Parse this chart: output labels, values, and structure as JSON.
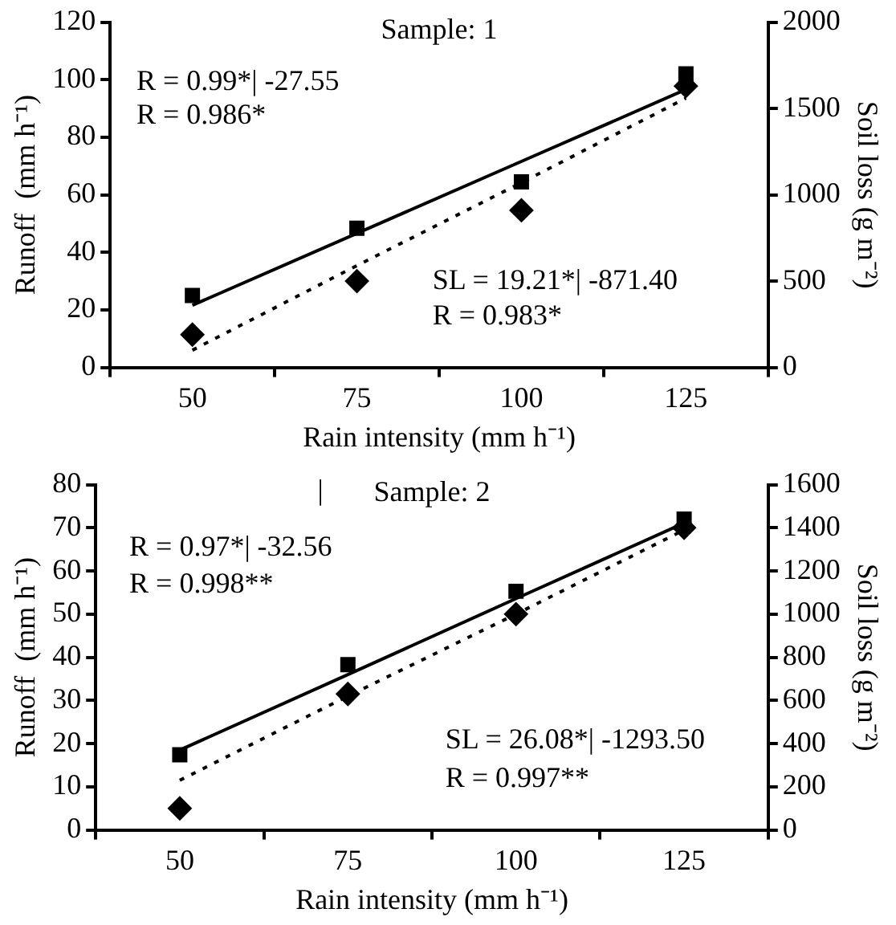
{
  "chart_data": [
    {
      "type": "scatter",
      "title": "Sample: 1",
      "xlabel": "Rain intensity (mm h⁻¹)",
      "ylabel": "Runoff  (mm h⁻¹)",
      "y2label": "Soil loss (g m⁻²)",
      "categories": [
        "50",
        "75",
        "100",
        "125"
      ],
      "series": [
        {
          "color": "#000000",
          "marker": "square",
          "values": [
            25,
            48.4,
            64.5,
            102
          ]
        },
        {
          "color": "#000000",
          "marker": "diamond",
          "axis": "y2",
          "values": [
            190,
            500,
            910,
            1630
          ]
        },
        {
          "type": "line",
          "color": "#000000",
          "marker": "none",
          "line_style": "solid",
          "values": [
            21.6,
            46.6,
            71.6,
            96.6
          ]
        },
        {
          "type": "line",
          "color": "#000000",
          "marker": "none",
          "line_style": "dotted",
          "axis": "y2",
          "values": [
            100,
            590,
            1070,
            1560
          ]
        }
      ],
      "ylim": [
        0,
        120
      ],
      "yticks": [
        0,
        20,
        40,
        60,
        80,
        100,
        120
      ],
      "y2lim": [
        0,
        2000
      ],
      "y2ticks": [
        0,
        500,
        1000,
        1500,
        2000
      ],
      "grid": false,
      "legend": false,
      "annotations": [
        "R = 0.99*| -27.55",
        "R = 0.986*",
        "SL = 19.21*| -871.40",
        "R = 0.983*"
      ]
    },
    {
      "type": "scatter",
      "title": "Sample: 2",
      "xlabel": "Rain intensity (mm h⁻¹)",
      "ylabel": "Runoff  (mm h⁻¹)",
      "y2label": "Soil loss (g m⁻²)",
      "categories": [
        "50",
        "75",
        "100",
        "125"
      ],
      "series": [
        {
          "color": "#000000",
          "marker": "square",
          "values": [
            17.4,
            38.3,
            55.3,
            72
          ]
        },
        {
          "color": "#000000",
          "marker": "diamond",
          "axis": "y2",
          "values": [
            100,
            630,
            1000,
            1400
          ]
        },
        {
          "type": "line",
          "color": "#000000",
          "marker": "none",
          "line_style": "solid",
          "values": [
            18.5,
            36,
            53.6,
            71.1
          ]
        },
        {
          "type": "line",
          "color": "#000000",
          "marker": "none",
          "line_style": "dotted",
          "axis": "y2",
          "values": [
            230,
            620,
            1000,
            1390
          ]
        }
      ],
      "ylim": [
        0,
        80
      ],
      "yticks": [
        0,
        10,
        20,
        30,
        40,
        50,
        60,
        70,
        80
      ],
      "y2lim": [
        0,
        1600
      ],
      "y2ticks": [
        0,
        200,
        400,
        600,
        800,
        1000,
        1200,
        1400,
        1600
      ],
      "grid": false,
      "legend": false,
      "annotations": [
        "|",
        "R = 0.97*| -32.56",
        "R = 0.998**",
        "SL = 26.08*| -1293.50",
        "R = 0.997**"
      ]
    }
  ]
}
